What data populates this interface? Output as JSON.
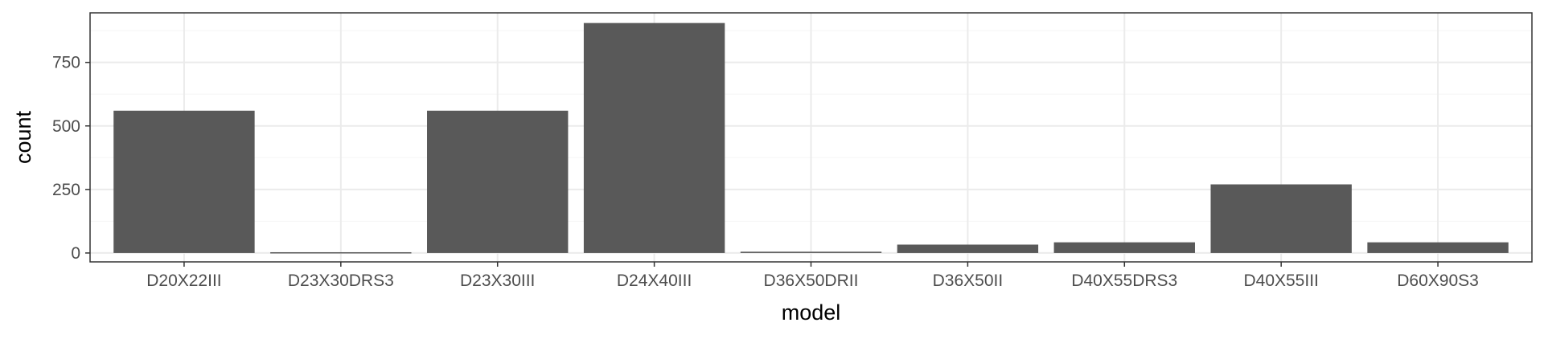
{
  "chart_data": {
    "type": "bar",
    "xlabel": "model",
    "ylabel": "count",
    "categories": [
      "D20X22III",
      "D23X30DRS3",
      "D23X30III",
      "D24X40III",
      "D36X50DRII",
      "D36X50II",
      "D40X55DRS3",
      "D40X55III",
      "D60X90S3"
    ],
    "values": [
      560,
      3,
      560,
      905,
      5,
      33,
      42,
      270,
      42
    ],
    "ylim": [
      -35,
      945
    ],
    "yticks": [
      0,
      250,
      500,
      750
    ],
    "grid": true,
    "legend": "none",
    "colors": {
      "bar": "#595959",
      "panel_border": "#333333",
      "grid_major": "#ebebeb",
      "grid_minor": "#f5f5f5",
      "tick": "#333333"
    }
  }
}
